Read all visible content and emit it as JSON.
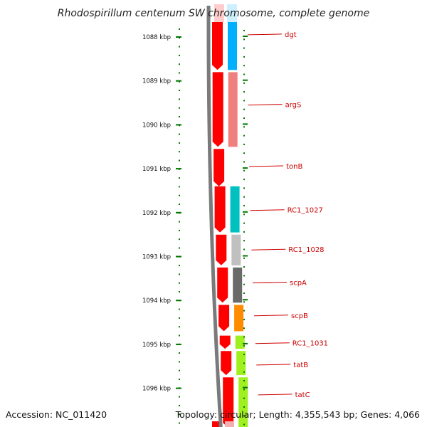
{
  "title": "Rhodospirillum centenum SW chromosome, complete genome",
  "accession": "Accession: NC_011420",
  "topology": "Topology: circular; Length: 4,355,543 bp; Genes: 4,066",
  "ticks": [
    {
      "label": "1088 kbp",
      "kbp": 1088
    },
    {
      "label": "1089 kbp",
      "kbp": 1089
    },
    {
      "label": "1090 kbp",
      "kbp": 1090
    },
    {
      "label": "1091 kbp",
      "kbp": 1091
    },
    {
      "label": "1092 kbp",
      "kbp": 1092
    },
    {
      "label": "1093 kbp",
      "kbp": 1093
    },
    {
      "label": "1094 kbp",
      "kbp": 1094
    },
    {
      "label": "1095 kbp",
      "kbp": 1095
    },
    {
      "label": "1096 kbp",
      "kbp": 1096
    }
  ],
  "genes": [
    {
      "name": "dgt",
      "start_kbp": 1087.55,
      "end_kbp": 1088.75,
      "color": "#00b0ff",
      "label_kbp": 1087.95
    },
    {
      "name": "argS",
      "start_kbp": 1088.8,
      "end_kbp": 1090.5,
      "color": "#f08080",
      "label_kbp": 1089.55
    },
    {
      "name": "tonB",
      "start_kbp": 1090.55,
      "end_kbp": 1091.4,
      "color": null,
      "label_kbp": 1090.95
    },
    {
      "name": "RC1_1027",
      "start_kbp": 1091.4,
      "end_kbp": 1092.45,
      "color": "#00c0c0",
      "label_kbp": 1091.95
    },
    {
      "name": "RC1_1028",
      "start_kbp": 1092.5,
      "end_kbp": 1093.2,
      "color": "#c0c0c0",
      "label_kbp": 1092.85
    },
    {
      "name": "scpA",
      "start_kbp": 1093.25,
      "end_kbp": 1094.05,
      "color": "#6a6a6a",
      "label_kbp": 1093.6
    },
    {
      "name": "scpB",
      "start_kbp": 1094.1,
      "end_kbp": 1094.7,
      "color": "#ff8c00",
      "label_kbp": 1094.35
    },
    {
      "name": "RC1_1031",
      "start_kbp": 1094.8,
      "end_kbp": 1095.1,
      "color": "#a0f020",
      "label_kbp": 1094.98
    },
    {
      "name": "tatB",
      "start_kbp": 1095.15,
      "end_kbp": 1095.7,
      "color": "#a0f020",
      "label_kbp": 1095.47
    },
    {
      "name": "tatC",
      "start_kbp": 1095.75,
      "end_kbp": 1096.9,
      "color": "#a0f020",
      "label_kbp": 1096.15
    }
  ],
  "colors": {
    "cds": "#ff0000",
    "cds_faded": "#ffcccc",
    "backbone": "#7a7a7a",
    "ticks": "#007700",
    "labels": "#cc0000"
  }
}
